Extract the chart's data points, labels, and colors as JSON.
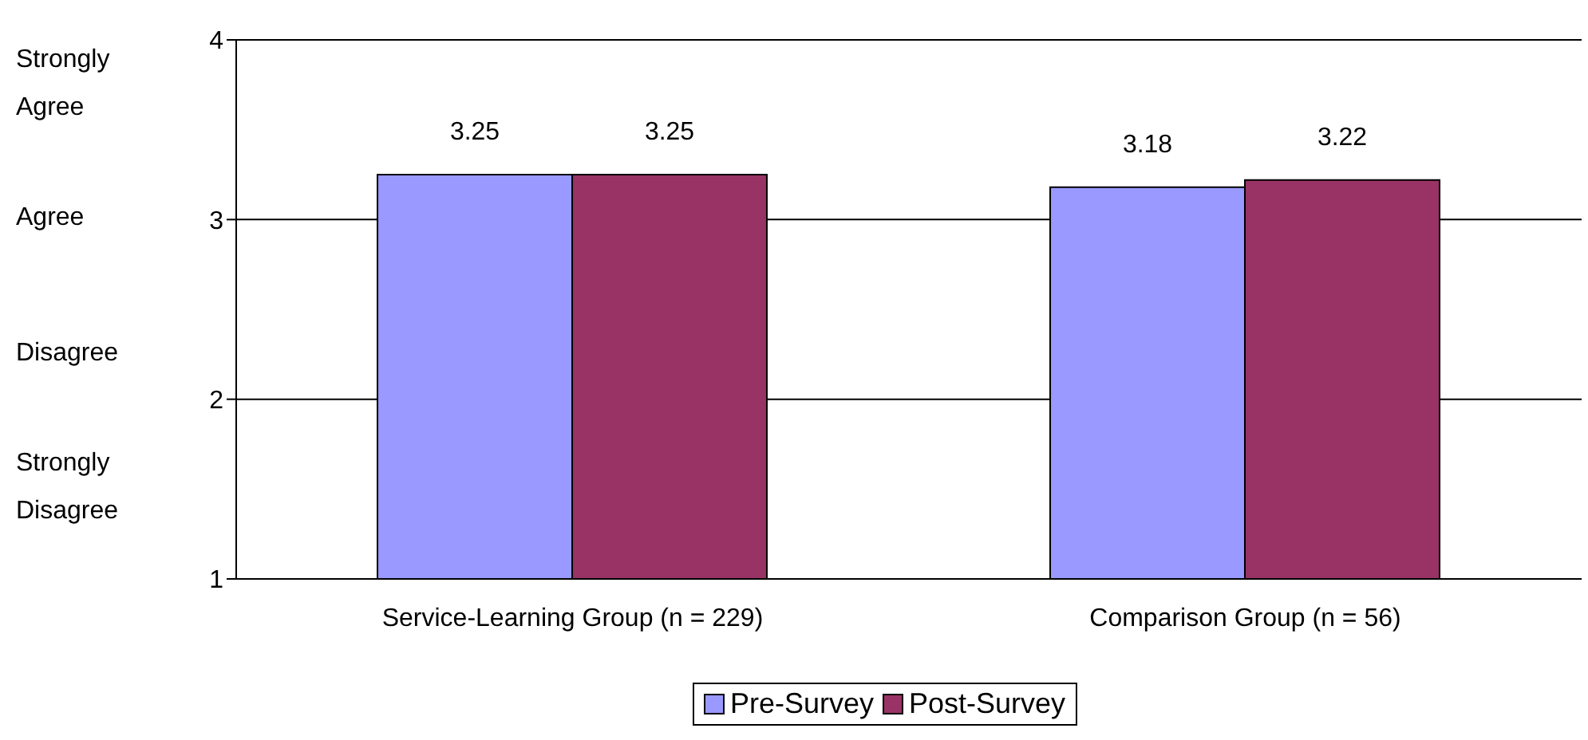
{
  "chart_data": {
    "type": "bar",
    "categories": [
      "Service-Learning Group (n = 229)",
      "Comparison Group (n = 56)"
    ],
    "series": [
      {
        "name": "Pre-Survey",
        "color": "#9999ff",
        "values": [
          3.25,
          3.18
        ]
      },
      {
        "name": "Post-Survey",
        "color": "#993366",
        "values": [
          3.25,
          3.22
        ]
      }
    ],
    "ylim": [
      1,
      4
    ],
    "yticks": [
      1,
      2,
      3,
      4
    ],
    "grid": "y",
    "legend": "bottom",
    "data_labels": true,
    "annotations": [
      "Strongly Agree",
      "Agree",
      "Disagree",
      "Strongly Disagree"
    ]
  }
}
